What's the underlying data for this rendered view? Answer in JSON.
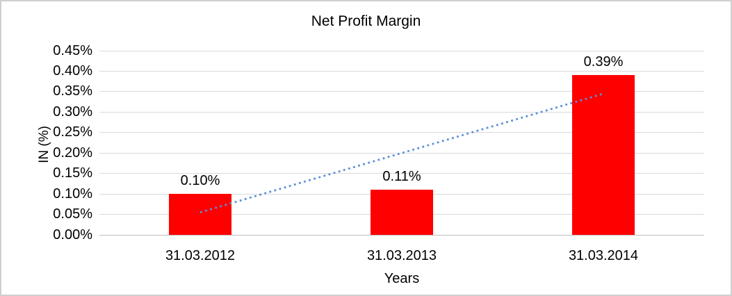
{
  "chart_data": {
    "type": "bar",
    "title": "Net Profit Margin",
    "xlabel": "Years",
    "ylabel": "IN (%)",
    "categories": [
      "31.03.2012",
      "31.03.2013",
      "31.03.2014"
    ],
    "values": [
      0.1,
      0.11,
      0.39
    ],
    "value_unit": "%",
    "data_labels": [
      "0.10%",
      "0.11%",
      "0.39%"
    ],
    "ylim": [
      0,
      0.45
    ],
    "ytick_step": 0.05,
    "ytick_labels": [
      "0.00%",
      "0.05%",
      "0.10%",
      "0.15%",
      "0.20%",
      "0.25%",
      "0.30%",
      "0.35%",
      "0.40%",
      "0.45%"
    ],
    "grid": true,
    "legend_position": "none",
    "bar_color": "#ff0000",
    "trendline": {
      "type": "linear",
      "style": "dotted",
      "color": "#5b8fd4",
      "start_value": 0.055,
      "end_value": 0.345
    }
  }
}
